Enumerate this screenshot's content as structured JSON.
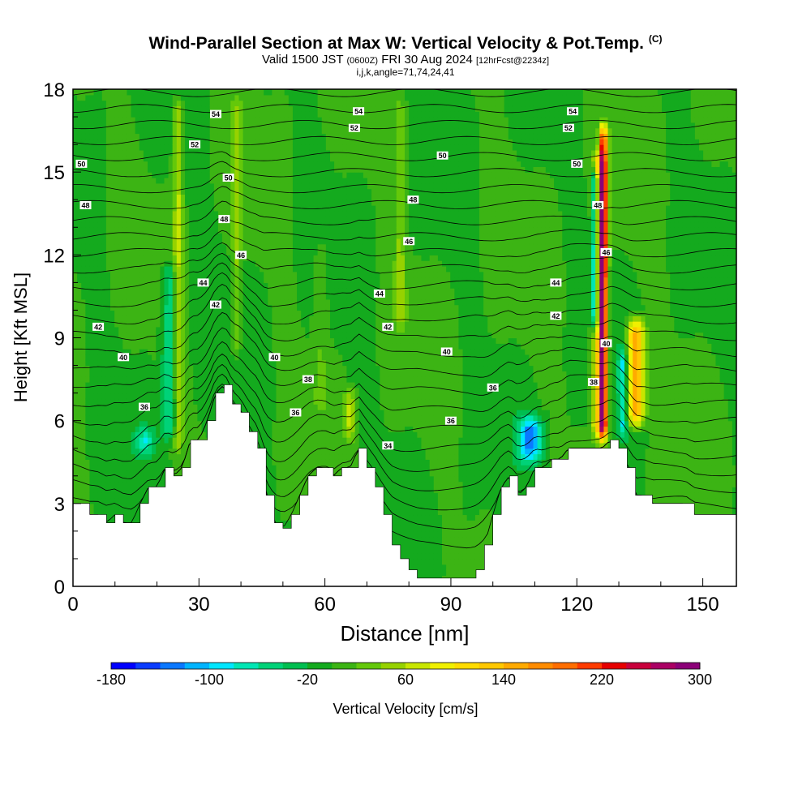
{
  "chart_data": {
    "type": "heatmap",
    "title": "Wind-Parallel Section at Max W: Vertical Velocity & Pot.Temp.",
    "title_mark": "(C)",
    "subtitle_prefix": "Valid 1500 JST",
    "subtitle_zulu": "(0600Z)",
    "subtitle_date": "FRI 30 Aug 2024",
    "subtitle_fcst": "[12hrFcst@2234z]",
    "subtitle2": "i,j,k,angle=71,74,24,41",
    "xlabel": "Distance [nm]",
    "ylabel": "Height [Kft MSL]",
    "xlim": [
      0,
      158
    ],
    "ylim": [
      0,
      18
    ],
    "x_ticks": [
      0,
      30,
      60,
      90,
      120,
      150
    ],
    "y_ticks": [
      0,
      3,
      6,
      9,
      12,
      15,
      18
    ],
    "colorbar": {
      "label": "Vertical Velocity [cm/s]",
      "ticks": [
        -180,
        -100,
        -20,
        60,
        140,
        220,
        300
      ],
      "levels": [
        -180,
        -160,
        -140,
        -120,
        -100,
        -80,
        -60,
        -40,
        -20,
        0,
        20,
        40,
        60,
        80,
        100,
        120,
        140,
        160,
        180,
        200,
        220,
        240,
        260,
        280,
        300
      ],
      "colors": [
        "#0000ff",
        "#0a3cff",
        "#0a78ff",
        "#00b4ff",
        "#00e6ff",
        "#00e6b4",
        "#00d278",
        "#00be50",
        "#14aa1e",
        "#3cb414",
        "#64c80a",
        "#96d200",
        "#c8e600",
        "#f0f000",
        "#ffdc00",
        "#ffc800",
        "#ffaa00",
        "#ff8c00",
        "#ff6e00",
        "#ff3c00",
        "#e60000",
        "#c8003c",
        "#aa0064",
        "#8c0078"
      ]
    },
    "terrain_kft": {
      "x": [
        0,
        4,
        6,
        8,
        10,
        12,
        14,
        16,
        18,
        20,
        22,
        24,
        26,
        28,
        30,
        32,
        34,
        36,
        38,
        40,
        42,
        44,
        46,
        48,
        50,
        52,
        54,
        56,
        58,
        60,
        62,
        64,
        66,
        68,
        70,
        72,
        74,
        76,
        78,
        80,
        82,
        84,
        86,
        88,
        90,
        92,
        94,
        96,
        98,
        100,
        102,
        104,
        106,
        108,
        110,
        112,
        114,
        116,
        118,
        120,
        122,
        124,
        126,
        128,
        130,
        132,
        134,
        136,
        138,
        140,
        142,
        144,
        146,
        148,
        150,
        152,
        154,
        156,
        158
      ],
      "y": [
        3.0,
        2.6,
        2.6,
        2.3,
        2.6,
        2.3,
        2.3,
        3.0,
        3.6,
        3.6,
        4.3,
        4.0,
        4.3,
        5.3,
        5.3,
        6.0,
        7.0,
        7.3,
        6.6,
        6.3,
        5.6,
        5.0,
        3.3,
        2.3,
        2.1,
        2.6,
        3.3,
        4.0,
        4.3,
        4.3,
        4.0,
        4.3,
        4.3,
        5.0,
        4.3,
        3.6,
        2.6,
        1.5,
        1.0,
        0.6,
        0.3,
        0.3,
        0.3,
        0.3,
        0.3,
        0.3,
        0.3,
        0.6,
        1.5,
        2.6,
        3.6,
        4.0,
        3.3,
        3.6,
        4.3,
        4.3,
        4.6,
        4.6,
        5.0,
        5.0,
        5.0,
        5.0,
        5.0,
        5.3,
        5.0,
        4.3,
        3.3,
        3.3,
        3.0,
        3.0,
        3.0,
        3.0,
        3.0,
        2.6,
        2.6,
        2.6,
        2.6,
        2.6,
        2.6
      ]
    },
    "velocity_features": [
      {
        "x": 25,
        "x_width": 1.2,
        "y_range": [
          4.5,
          18
        ],
        "value": 60
      },
      {
        "x": 23,
        "x_width": 2.0,
        "y_range": [
          5,
          12
        ],
        "value": -60
      },
      {
        "x": 17,
        "x_width": 2.5,
        "y_range": [
          4.5,
          6
        ],
        "value": -80
      },
      {
        "x": 39,
        "x_width": 1.2,
        "y_range": [
          8,
          18
        ],
        "value": 40
      },
      {
        "x": 66,
        "x_width": 1.5,
        "y_range": [
          5,
          7.5
        ],
        "value": 60
      },
      {
        "x": 59,
        "x_width": 2.0,
        "y_range": [
          6,
          13
        ],
        "value": 20
      },
      {
        "x": 109,
        "x_width": 3.0,
        "y_range": [
          4.2,
          6.5
        ],
        "value": -120
      },
      {
        "x": 124.3,
        "x_width": 1.0,
        "y_range": [
          9,
          15.5
        ],
        "value": -140
      },
      {
        "x": 126.3,
        "x_width": 1.0,
        "y_range": [
          5,
          17
        ],
        "value": 240
      },
      {
        "x": 125.3,
        "x_width": 1.8,
        "y_range": [
          5,
          16
        ],
        "value": 120
      },
      {
        "x": 134,
        "x_width": 2.2,
        "y_range": [
          5.5,
          10
        ],
        "value": 160
      },
      {
        "x": 131,
        "x_width": 1.2,
        "y_range": [
          5,
          9
        ],
        "value": -80
      },
      {
        "x": 78,
        "x_width": 1.5,
        "y_range": [
          9,
          18
        ],
        "value": 40
      }
    ],
    "isentrope_labels": [
      {
        "x": 34,
        "y": 17.1,
        "text": "54"
      },
      {
        "x": 68,
        "y": 17.2,
        "text": "54"
      },
      {
        "x": 119,
        "y": 17.2,
        "text": "54"
      },
      {
        "x": 29,
        "y": 16.0,
        "text": "52"
      },
      {
        "x": 67,
        "y": 16.6,
        "text": "52"
      },
      {
        "x": 118,
        "y": 16.6,
        "text": "52"
      },
      {
        "x": 2,
        "y": 15.3,
        "text": "50"
      },
      {
        "x": 37,
        "y": 14.8,
        "text": "50"
      },
      {
        "x": 88,
        "y": 15.6,
        "text": "50"
      },
      {
        "x": 120,
        "y": 15.3,
        "text": "50"
      },
      {
        "x": 3,
        "y": 13.8,
        "text": "48"
      },
      {
        "x": 36,
        "y": 13.3,
        "text": "48"
      },
      {
        "x": 81,
        "y": 14.0,
        "text": "48"
      },
      {
        "x": 125,
        "y": 13.8,
        "text": "48"
      },
      {
        "x": 40,
        "y": 12.0,
        "text": "46"
      },
      {
        "x": 80,
        "y": 12.5,
        "text": "46"
      },
      {
        "x": 127,
        "y": 12.1,
        "text": "46"
      },
      {
        "x": 31,
        "y": 11.0,
        "text": "44"
      },
      {
        "x": 73,
        "y": 10.6,
        "text": "44"
      },
      {
        "x": 115,
        "y": 11.0,
        "text": "44"
      },
      {
        "x": 6,
        "y": 9.4,
        "text": "42"
      },
      {
        "x": 34,
        "y": 10.2,
        "text": "42"
      },
      {
        "x": 75,
        "y": 9.4,
        "text": "42"
      },
      {
        "x": 115,
        "y": 9.8,
        "text": "42"
      },
      {
        "x": 12,
        "y": 8.3,
        "text": "40"
      },
      {
        "x": 48,
        "y": 8.3,
        "text": "40"
      },
      {
        "x": 89,
        "y": 8.5,
        "text": "40"
      },
      {
        "x": 127,
        "y": 8.8,
        "text": "40"
      },
      {
        "x": 56,
        "y": 7.5,
        "text": "38"
      },
      {
        "x": 124,
        "y": 7.4,
        "text": "38"
      },
      {
        "x": 17,
        "y": 6.5,
        "text": "36"
      },
      {
        "x": 53,
        "y": 6.3,
        "text": "36"
      },
      {
        "x": 100,
        "y": 7.2,
        "text": "36"
      },
      {
        "x": 90,
        "y": 6.0,
        "text": "36"
      },
      {
        "x": 75,
        "y": 5.1,
        "text": "34"
      }
    ]
  }
}
